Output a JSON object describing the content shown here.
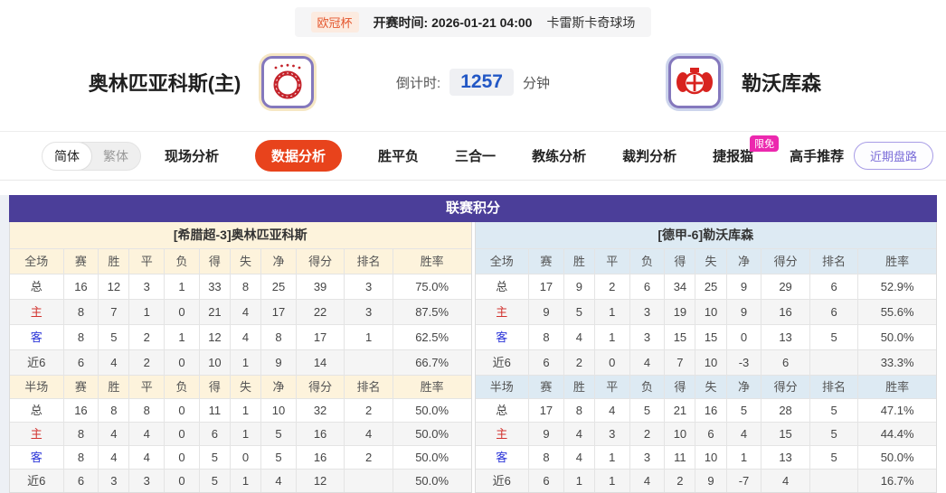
{
  "top_bar": {
    "league": "欧冠杯",
    "kickoff_label": "开赛时间:",
    "kickoff_time": "2026-01-21 04:00",
    "venue": "卡雷斯卡奇球场"
  },
  "header": {
    "home_team": "奥林匹亚科斯(主)",
    "away_team": "勒沃库森",
    "countdown_label": "倒计时:",
    "countdown_value": "1257",
    "countdown_unit": "分钟"
  },
  "nav": {
    "lang_simplified": "简体",
    "lang_traditional": "繁体",
    "tabs": [
      "现场分析",
      "数据分析",
      "胜平负",
      "三合一",
      "教练分析",
      "裁判分析",
      "捷报猫",
      "高手推荐"
    ],
    "active_tab": "数据分析",
    "badge": "限免",
    "badge_on": "捷报猫",
    "right_button": "近期盘路"
  },
  "table": {
    "title": "联赛积分",
    "columns_full": [
      "全场",
      "赛",
      "胜",
      "平",
      "负",
      "得",
      "失",
      "净",
      "得分",
      "排名",
      "胜率"
    ],
    "columns_half": [
      "半场",
      "赛",
      "胜",
      "平",
      "负",
      "得",
      "失",
      "净",
      "得分",
      "排名",
      "胜率"
    ],
    "left": {
      "team_header": "[希腊超-3]奥林匹亚科斯",
      "full_rows": [
        [
          "总",
          "16",
          "12",
          "3",
          "1",
          "33",
          "8",
          "25",
          "39",
          "3",
          "75.0%"
        ],
        [
          "主",
          "8",
          "7",
          "1",
          "0",
          "21",
          "4",
          "17",
          "22",
          "3",
          "87.5%"
        ],
        [
          "客",
          "8",
          "5",
          "2",
          "1",
          "12",
          "4",
          "8",
          "17",
          "1",
          "62.5%"
        ],
        [
          "近6",
          "6",
          "4",
          "2",
          "0",
          "10",
          "1",
          "9",
          "14",
          "",
          "66.7%"
        ]
      ],
      "half_rows": [
        [
          "总",
          "16",
          "8",
          "8",
          "0",
          "11",
          "1",
          "10",
          "32",
          "2",
          "50.0%"
        ],
        [
          "主",
          "8",
          "4",
          "4",
          "0",
          "6",
          "1",
          "5",
          "16",
          "4",
          "50.0%"
        ],
        [
          "客",
          "8",
          "4",
          "4",
          "0",
          "5",
          "0",
          "5",
          "16",
          "2",
          "50.0%"
        ],
        [
          "近6",
          "6",
          "3",
          "3",
          "0",
          "5",
          "1",
          "4",
          "12",
          "",
          "50.0%"
        ]
      ]
    },
    "right": {
      "team_header": "[德甲-6]勒沃库森",
      "full_rows": [
        [
          "总",
          "17",
          "9",
          "2",
          "6",
          "34",
          "25",
          "9",
          "29",
          "6",
          "52.9%"
        ],
        [
          "主",
          "9",
          "5",
          "1",
          "3",
          "19",
          "10",
          "9",
          "16",
          "6",
          "55.6%"
        ],
        [
          "客",
          "8",
          "4",
          "1",
          "3",
          "15",
          "15",
          "0",
          "13",
          "5",
          "50.0%"
        ],
        [
          "近6",
          "6",
          "2",
          "0",
          "4",
          "7",
          "10",
          "-3",
          "6",
          "",
          "33.3%"
        ]
      ],
      "half_rows": [
        [
          "总",
          "17",
          "8",
          "4",
          "5",
          "21",
          "16",
          "5",
          "28",
          "5",
          "47.1%"
        ],
        [
          "主",
          "9",
          "4",
          "3",
          "2",
          "10",
          "6",
          "4",
          "15",
          "5",
          "44.4%"
        ],
        [
          "客",
          "8",
          "4",
          "1",
          "3",
          "11",
          "10",
          "1",
          "13",
          "5",
          "50.0%"
        ],
        [
          "近6",
          "6",
          "1",
          "1",
          "4",
          "2",
          "9",
          "-7",
          "4",
          "",
          "16.7%"
        ]
      ]
    }
  },
  "colors": {
    "accent_orange": "#e8431c",
    "purple_header": "#4b3e99",
    "cream_header": "#fdf3dc",
    "blue_header": "#ddeaf3",
    "badge_pink": "#ec28ae",
    "countdown_blue": "#2257c5",
    "home_row_red": "#d23430",
    "away_row_blue": "#2b35d8"
  }
}
